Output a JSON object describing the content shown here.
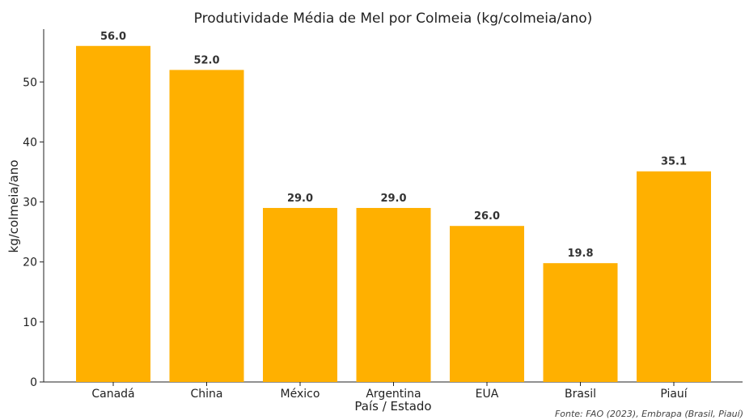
{
  "chart_data": {
    "type": "bar",
    "title": "Produtividade Média de Mel por Colmeia (kg/colmeia/ano)",
    "xlabel": "País / Estado",
    "ylabel": "kg/colmeia/ano",
    "categories": [
      "Canadá",
      "China",
      "México",
      "Argentina",
      "EUA",
      "Brasil",
      "Piauí"
    ],
    "values": [
      56.0,
      52.0,
      29.0,
      29.0,
      26.0,
      19.8,
      35.1
    ],
    "value_labels": [
      "56.0",
      "52.0",
      "29.0",
      "29.0",
      "26.0",
      "19.8",
      "35.1"
    ],
    "ylim": [
      0,
      58.8
    ],
    "yticks": [
      0,
      10,
      20,
      30,
      40,
      50
    ],
    "ytick_labels": [
      "0",
      "10",
      "20",
      "30",
      "40",
      "50"
    ],
    "bar_color": "#FFB000",
    "grid": false,
    "legend": false,
    "source_note": "Fonte: FAO (2023), Embrapa (Brasil, Piauí)"
  }
}
